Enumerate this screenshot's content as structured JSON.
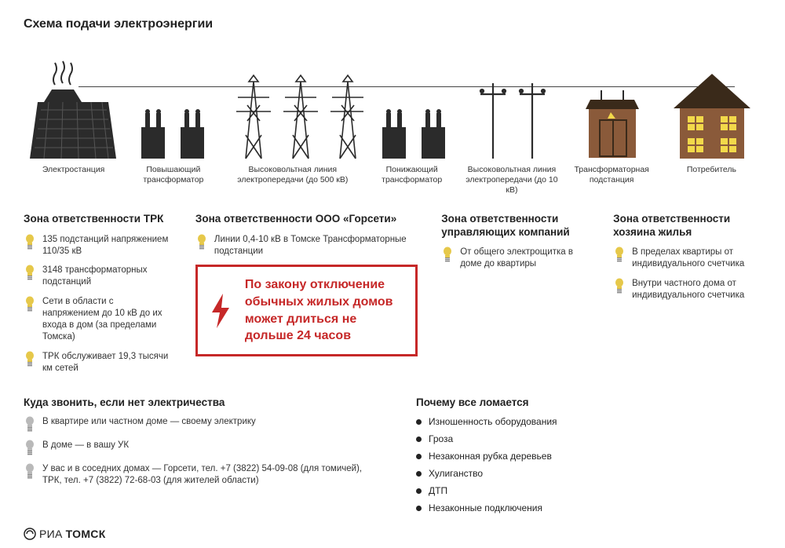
{
  "title": "Схема подачи электроэнергии",
  "colors": {
    "border_red": "#c62828",
    "text_red": "#c62828",
    "dark": "#2b2b2b",
    "bulb_yellow": "#e6c84a",
    "bulb_gray": "#b9b9b9",
    "house_wall": "#8a5a3a",
    "house_roof": "#3a2a1a",
    "house_window": "#f2d94a",
    "substation_body": "#8a5a3a",
    "substation_sign": "#f2d94a",
    "background": "#ffffff"
  },
  "stages": [
    {
      "label": "Электростанция"
    },
    {
      "label": "Повышающий\nтрансформатор"
    },
    {
      "label": "Высоковольтная линия\nэлектропередачи (до 500 кВ)"
    },
    {
      "label": "Понижающий\nтрансформатор"
    },
    {
      "label": "Высоковольтная линия\nэлектропередачи (до 10 кВ)"
    },
    {
      "label": "Трансформаторная\nподстанция"
    },
    {
      "label": "Потребитель"
    }
  ],
  "zones": [
    {
      "title": "Зона ответственности ТРК",
      "bulb": "yellow",
      "items": [
        "135 подстанций напряжением 110/35 кВ",
        "3148 трансформаторных подстанций",
        "Сети в области с напряжением до 10 кВ до их входа в дом (за пределами Томска)",
        "ТРК обслуживает 19,3 тысячи км сетей"
      ]
    },
    {
      "title": "Зона ответственности ООО «Горсети»",
      "bulb": "yellow",
      "items": [
        "Линии 0,4-10 кВ в Томске Трансформаторные подстанции"
      ]
    },
    {
      "title": "Зона ответственности управляющих компаний",
      "bulb": "yellow",
      "items": [
        "От общего электрощитка в доме до квартиры"
      ]
    },
    {
      "title": "Зона ответственности хозяина жилья",
      "bulb": "yellow",
      "items": [
        "В пределах квартиры от индивидуального счетчика",
        "Внутри частного дома от индивидуального счетчика"
      ]
    }
  ],
  "notice": "По закону отключение обычных жилых домов может длиться не дольше 24 часов",
  "call": {
    "title": "Куда звонить, если нет электричества",
    "bulb": "gray",
    "items": [
      "В квартире или частном доме — своему электрику",
      "В доме — в вашу УК",
      "У вас и в соседних домах — Горсети, тел. +7 (3822) 54-09-08 (для томичей), ТРК, тел. +7 (3822) 72-68-03 (для жителей области)"
    ]
  },
  "breaks": {
    "title": "Почему все ломается",
    "items": [
      "Изношенность оборудования",
      "Гроза",
      "Незаконная рубка деревьев",
      "Хулиганство",
      "ДТП",
      "Незаконные подключения"
    ]
  },
  "logo": {
    "prefix": "РИА",
    "suffix": "ТОМСК"
  }
}
